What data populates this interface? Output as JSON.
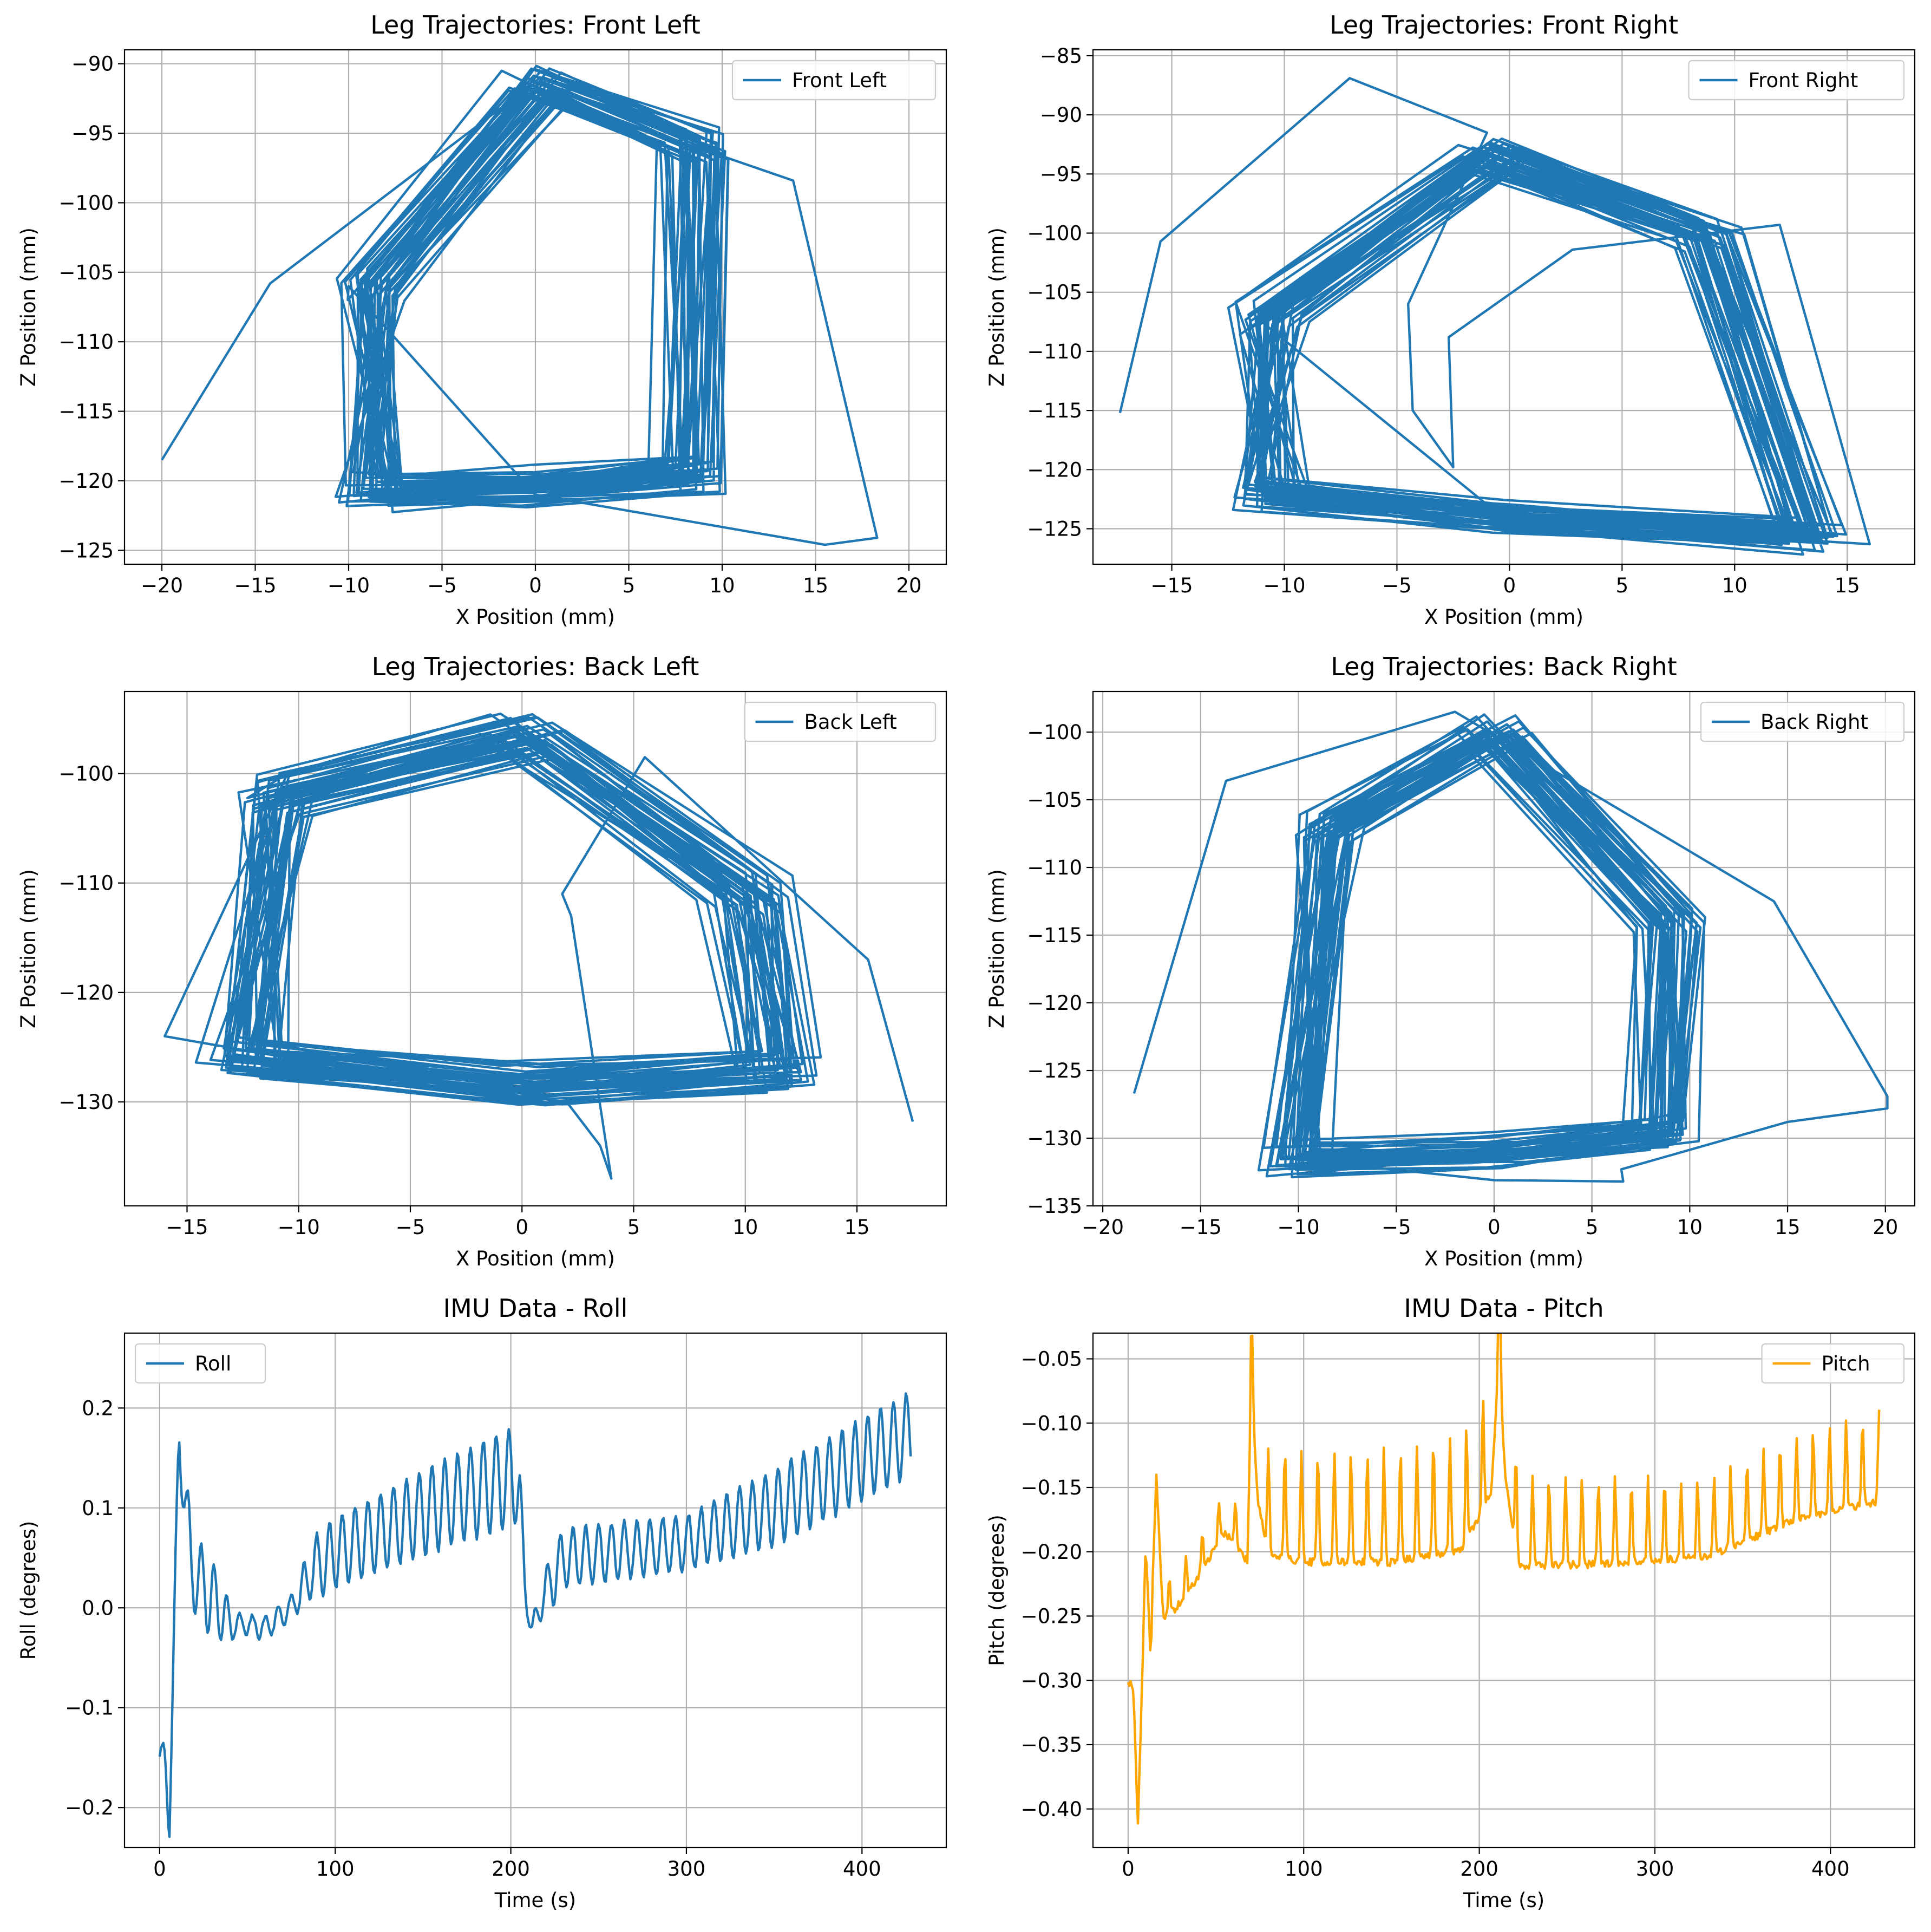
{
  "chart_data": [
    {
      "type": "line",
      "title": "Leg Trajectories: Front Left",
      "xlabel": "X Position (mm)",
      "ylabel": "Z Position (mm)",
      "xlim": [
        -22,
        22
      ],
      "ylim": [
        -126,
        -89
      ],
      "xticks": [
        -20,
        -15,
        -10,
        -5,
        0,
        5,
        10,
        15,
        20
      ],
      "yticks": [
        -125,
        -120,
        -115,
        -110,
        -105,
        -100,
        -95,
        -90
      ],
      "tick_labels": {
        "x": [
          "−20",
          "−15",
          "−10",
          "−5",
          "0",
          "5",
          "10",
          "15",
          "20"
        ],
        "y": [
          "−125",
          "−120",
          "−115",
          "−110",
          "−105",
          "−100",
          "−95",
          "−90"
        ]
      },
      "grid": true,
      "legend": "top-right",
      "series": [
        {
          "name": "Front Left",
          "color": "#1f77b4",
          "shape": "loop",
          "seed": 11,
          "cycles": 42,
          "loop": [
            [
              -9,
              -106
            ],
            [
              0,
              -91.5
            ],
            [
              8.5,
              -96
            ],
            [
              8.2,
              -119.5
            ],
            [
              0,
              -120.5
            ],
            [
              -9,
              -120.8
            ]
          ],
          "jitter": [
            1.6,
            1.2
          ],
          "start": [
            -20,
            -118.5
          ],
          "extra": [
            [
              -20,
              -118.5
            ],
            [
              -14.2,
              -105.8
            ],
            [
              -0.5,
              -91.8
            ],
            [
              13.8,
              -98.4
            ],
            [
              18.3,
              -124.1
            ],
            [
              15.5,
              -124.6
            ],
            [
              0,
              -121
            ],
            [
              -10,
              -106
            ]
          ]
        }
      ]
    },
    {
      "type": "line",
      "title": "Leg Trajectories: Front Right",
      "xlabel": "X Position (mm)",
      "ylabel": "Z Position (mm)",
      "xlim": [
        -18.5,
        18
      ],
      "ylim": [
        -128,
        -84.5
      ],
      "xticks": [
        -15,
        -10,
        -5,
        0,
        5,
        10,
        15
      ],
      "yticks": [
        -125,
        -120,
        -115,
        -110,
        -105,
        -100,
        -95,
        -90,
        -85
      ],
      "tick_labels": {
        "x": [
          "−15",
          "−10",
          "−5",
          "0",
          "5",
          "10",
          "15"
        ],
        "y": [
          "−125",
          "−120",
          "−115",
          "−110",
          "−105",
          "−100",
          "−95",
          "−90",
          "−85"
        ]
      },
      "grid": true,
      "legend": "top-right",
      "series": [
        {
          "name": "Front Right",
          "color": "#1f77b4",
          "shape": "loop",
          "seed": 23,
          "cycles": 42,
          "loop": [
            [
              -10.5,
              -107
            ],
            [
              -0.5,
              -93.5
            ],
            [
              9,
              -100
            ],
            [
              13.5,
              -125.5
            ],
            [
              0,
              -124
            ],
            [
              -10.5,
              -122
            ]
          ],
          "jitter": [
            1.4,
            1.2
          ],
          "start": [
            -17.3,
            -115.2
          ],
          "extra": [
            [
              -17.3,
              -115.2
            ],
            [
              -15.5,
              -100.7
            ],
            [
              -7.1,
              -86.9
            ],
            [
              -1,
              -91.5
            ],
            [
              -4.5,
              -106
            ],
            [
              -4.3,
              -115
            ],
            [
              -2.5,
              -119.8
            ],
            [
              -2.7,
              -108.8
            ],
            [
              2.8,
              -101.4
            ],
            [
              12,
              -99.3
            ],
            [
              16,
              -126.3
            ],
            [
              0,
              -124.5
            ]
          ]
        }
      ]
    },
    {
      "type": "line",
      "title": "Leg Trajectories: Back Left",
      "xlabel": "X Position (mm)",
      "ylabel": "Z Position (mm)",
      "xlim": [
        -17.8,
        19
      ],
      "ylim": [
        -139.5,
        -92.5
      ],
      "xticks": [
        -15,
        -10,
        -5,
        0,
        5,
        10,
        15
      ],
      "yticks": [
        -130,
        -120,
        -110,
        -100
      ],
      "tick_labels": {
        "x": [
          "−15",
          "−10",
          "−5",
          "0",
          "5",
          "10",
          "15"
        ],
        "y": [
          "−130",
          "−120",
          "−110",
          "−100"
        ]
      },
      "grid": true,
      "legend": "top-right",
      "series": [
        {
          "name": "Back Left",
          "color": "#1f77b4",
          "shape": "loop",
          "seed": 37,
          "cycles": 42,
          "loop": [
            [
              -11,
              -102
            ],
            [
              0,
              -96.5
            ],
            [
              10,
              -111
            ],
            [
              11.2,
              -127
            ],
            [
              0,
              -128.5
            ],
            [
              -12.5,
              -126
            ]
          ],
          "jitter": [
            1.6,
            1.6
          ],
          "start": [
            17.5,
            -131.8
          ],
          "extra": [
            [
              17.5,
              -131.8
            ],
            [
              15.5,
              -117
            ],
            [
              5.5,
              -98.5
            ],
            [
              1.8,
              -111
            ],
            [
              2.2,
              -113
            ],
            [
              4,
              -137
            ],
            [
              3.5,
              -134
            ],
            [
              2,
              -130
            ],
            [
              -2,
              -129
            ],
            [
              -16,
              -124
            ],
            [
              -10.5,
              -100
            ]
          ]
        }
      ]
    },
    {
      "type": "line",
      "title": "Leg Trajectories: Back Right",
      "xlabel": "X Position (mm)",
      "ylabel": "Z Position (mm)",
      "xlim": [
        -20.5,
        21.5
      ],
      "ylim": [
        -135,
        -97
      ],
      "xticks": [
        -20,
        -15,
        -10,
        -5,
        0,
        5,
        10,
        15,
        20
      ],
      "yticks": [
        -135,
        -130,
        -125,
        -120,
        -115,
        -110,
        -105,
        -100
      ],
      "tick_labels": {
        "x": [
          "−20",
          "−15",
          "−10",
          "−5",
          "0",
          "5",
          "10",
          "15",
          "20"
        ],
        "y": [
          "−135",
          "−130",
          "−125",
          "−120",
          "−115",
          "−110",
          "−105",
          "−100"
        ]
      },
      "grid": true,
      "legend": "top-right",
      "series": [
        {
          "name": "Back Right",
          "color": "#1f77b4",
          "shape": "loop",
          "seed": 51,
          "cycles": 42,
          "loop": [
            [
              -8.5,
              -107
            ],
            [
              0,
              -100
            ],
            [
              9,
              -114
            ],
            [
              8.5,
              -129.5
            ],
            [
              0,
              -131
            ],
            [
              -10,
              -131.5
            ]
          ],
          "jitter": [
            1.5,
            1.1
          ],
          "start": [
            -18.4,
            -126.7
          ],
          "extra": [
            [
              -18.4,
              -126.7
            ],
            [
              -13.7,
              -103.6
            ],
            [
              -2,
              -98.5
            ],
            [
              14.3,
              -112.5
            ],
            [
              20.1,
              -126.9
            ],
            [
              20.1,
              -127.8
            ],
            [
              15,
              -128.8
            ],
            [
              6.5,
              -132.3
            ],
            [
              6.6,
              -133.2
            ],
            [
              0,
              -133.1
            ],
            [
              -10.5,
              -131.5
            ]
          ]
        }
      ]
    },
    {
      "type": "line",
      "title": "IMU Data - Roll",
      "xlabel": "Time (s)",
      "ylabel": "Roll (degrees)",
      "xlim": [
        -20,
        448
      ],
      "ylim": [
        -0.24,
        0.275
      ],
      "xticks": [
        0,
        100,
        200,
        300,
        400
      ],
      "yticks": [
        -0.2,
        -0.1,
        0.0,
        0.1,
        0.2
      ],
      "tick_labels": {
        "x": [
          "0",
          "100",
          "200",
          "300",
          "400"
        ],
        "y": [
          "−0.2",
          "−0.1",
          "0.0",
          "0.1",
          "0.2"
        ]
      },
      "grid": true,
      "legend": "top-left",
      "series": [
        {
          "name": "Roll",
          "color": "#1f77b4",
          "shape": "wave",
          "seed": 7,
          "tmax": 428,
          "period": 7.3,
          "anchors": [
            [
              0,
              -0.148
            ],
            [
              3,
              -0.152
            ],
            [
              5.5,
              -0.213
            ],
            [
              8,
              -0.05
            ],
            [
              11,
              0.175
            ],
            [
              14,
              0.12
            ],
            [
              18,
              0.04
            ],
            [
              25,
              0.02
            ],
            [
              40,
              -0.015
            ],
            [
              60,
              -0.02
            ],
            [
              75,
              0.0
            ],
            [
              88,
              0.04
            ],
            [
              100,
              0.055
            ],
            [
              150,
              0.095
            ],
            [
              199,
              0.13
            ],
            [
              205,
              0.12
            ],
            [
              208,
              0.02
            ],
            [
              212,
              -0.025
            ],
            [
              218,
              0.01
            ],
            [
              230,
              0.05
            ],
            [
              300,
              0.065
            ],
            [
              350,
              0.1
            ],
            [
              428,
              0.175
            ]
          ],
          "amps": [
            [
              0,
              0.02
            ],
            [
              15,
              0.08
            ],
            [
              30,
              0.08
            ],
            [
              45,
              0.02
            ],
            [
              75,
              0.025
            ],
            [
              92,
              0.07
            ],
            [
              150,
              0.085
            ],
            [
              200,
              0.1
            ],
            [
              210,
              0.02
            ],
            [
              225,
              0.06
            ],
            [
              300,
              0.055
            ],
            [
              360,
              0.08
            ],
            [
              428,
              0.085
            ]
          ]
        }
      ]
    },
    {
      "type": "line",
      "title": "IMU Data - Pitch",
      "xlabel": "Time (s)",
      "ylabel": "Pitch (degrees)",
      "xlim": [
        -20,
        448
      ],
      "ylim": [
        -0.43,
        -0.03
      ],
      "xticks": [
        0,
        100,
        200,
        300,
        400
      ],
      "yticks": [
        -0.4,
        -0.35,
        -0.3,
        -0.25,
        -0.2,
        -0.15,
        -0.1,
        -0.05
      ],
      "tick_labels": {
        "x": [
          "0",
          "100",
          "200",
          "300",
          "400"
        ],
        "y": [
          "−0.40",
          "−0.35",
          "−0.30",
          "−0.25",
          "−0.20",
          "−0.15",
          "−0.10",
          "−0.05"
        ]
      },
      "grid": true,
      "legend": "top-right",
      "series": [
        {
          "name": "Pitch",
          "color": "#ffa500",
          "shape": "spike",
          "seed": 19,
          "tmax": 428,
          "period": 9.4,
          "anchors": [
            [
              0,
              -0.3
            ],
            [
              3,
              -0.305
            ],
            [
              5.5,
              -0.415
            ],
            [
              8,
              -0.3
            ],
            [
              10,
              -0.19
            ],
            [
              13,
              -0.285
            ],
            [
              16,
              -0.135
            ],
            [
              20,
              -0.25
            ],
            [
              30,
              -0.235
            ],
            [
              40,
              -0.215
            ],
            [
              55,
              -0.18
            ],
            [
              68,
              -0.2
            ],
            [
              70,
              -0.065
            ],
            [
              74,
              -0.15
            ],
            [
              80,
              -0.19
            ],
            [
              100,
              -0.195
            ],
            [
              150,
              -0.195
            ],
            [
              190,
              -0.185
            ],
            [
              207,
              -0.14
            ],
            [
              211,
              -0.04
            ],
            [
              215,
              -0.13
            ],
            [
              222,
              -0.2
            ],
            [
              260,
              -0.2
            ],
            [
              330,
              -0.195
            ],
            [
              380,
              -0.165
            ],
            [
              428,
              -0.15
            ]
          ],
          "amps": [
            [
              0,
              0.0
            ],
            [
              25,
              0.03
            ],
            [
              60,
              0.03
            ],
            [
              80,
              0.085
            ],
            [
              200,
              0.09
            ],
            [
              230,
              0.07
            ],
            [
              330,
              0.06
            ],
            [
              380,
              0.065
            ],
            [
              428,
              0.07
            ]
          ]
        }
      ]
    }
  ]
}
